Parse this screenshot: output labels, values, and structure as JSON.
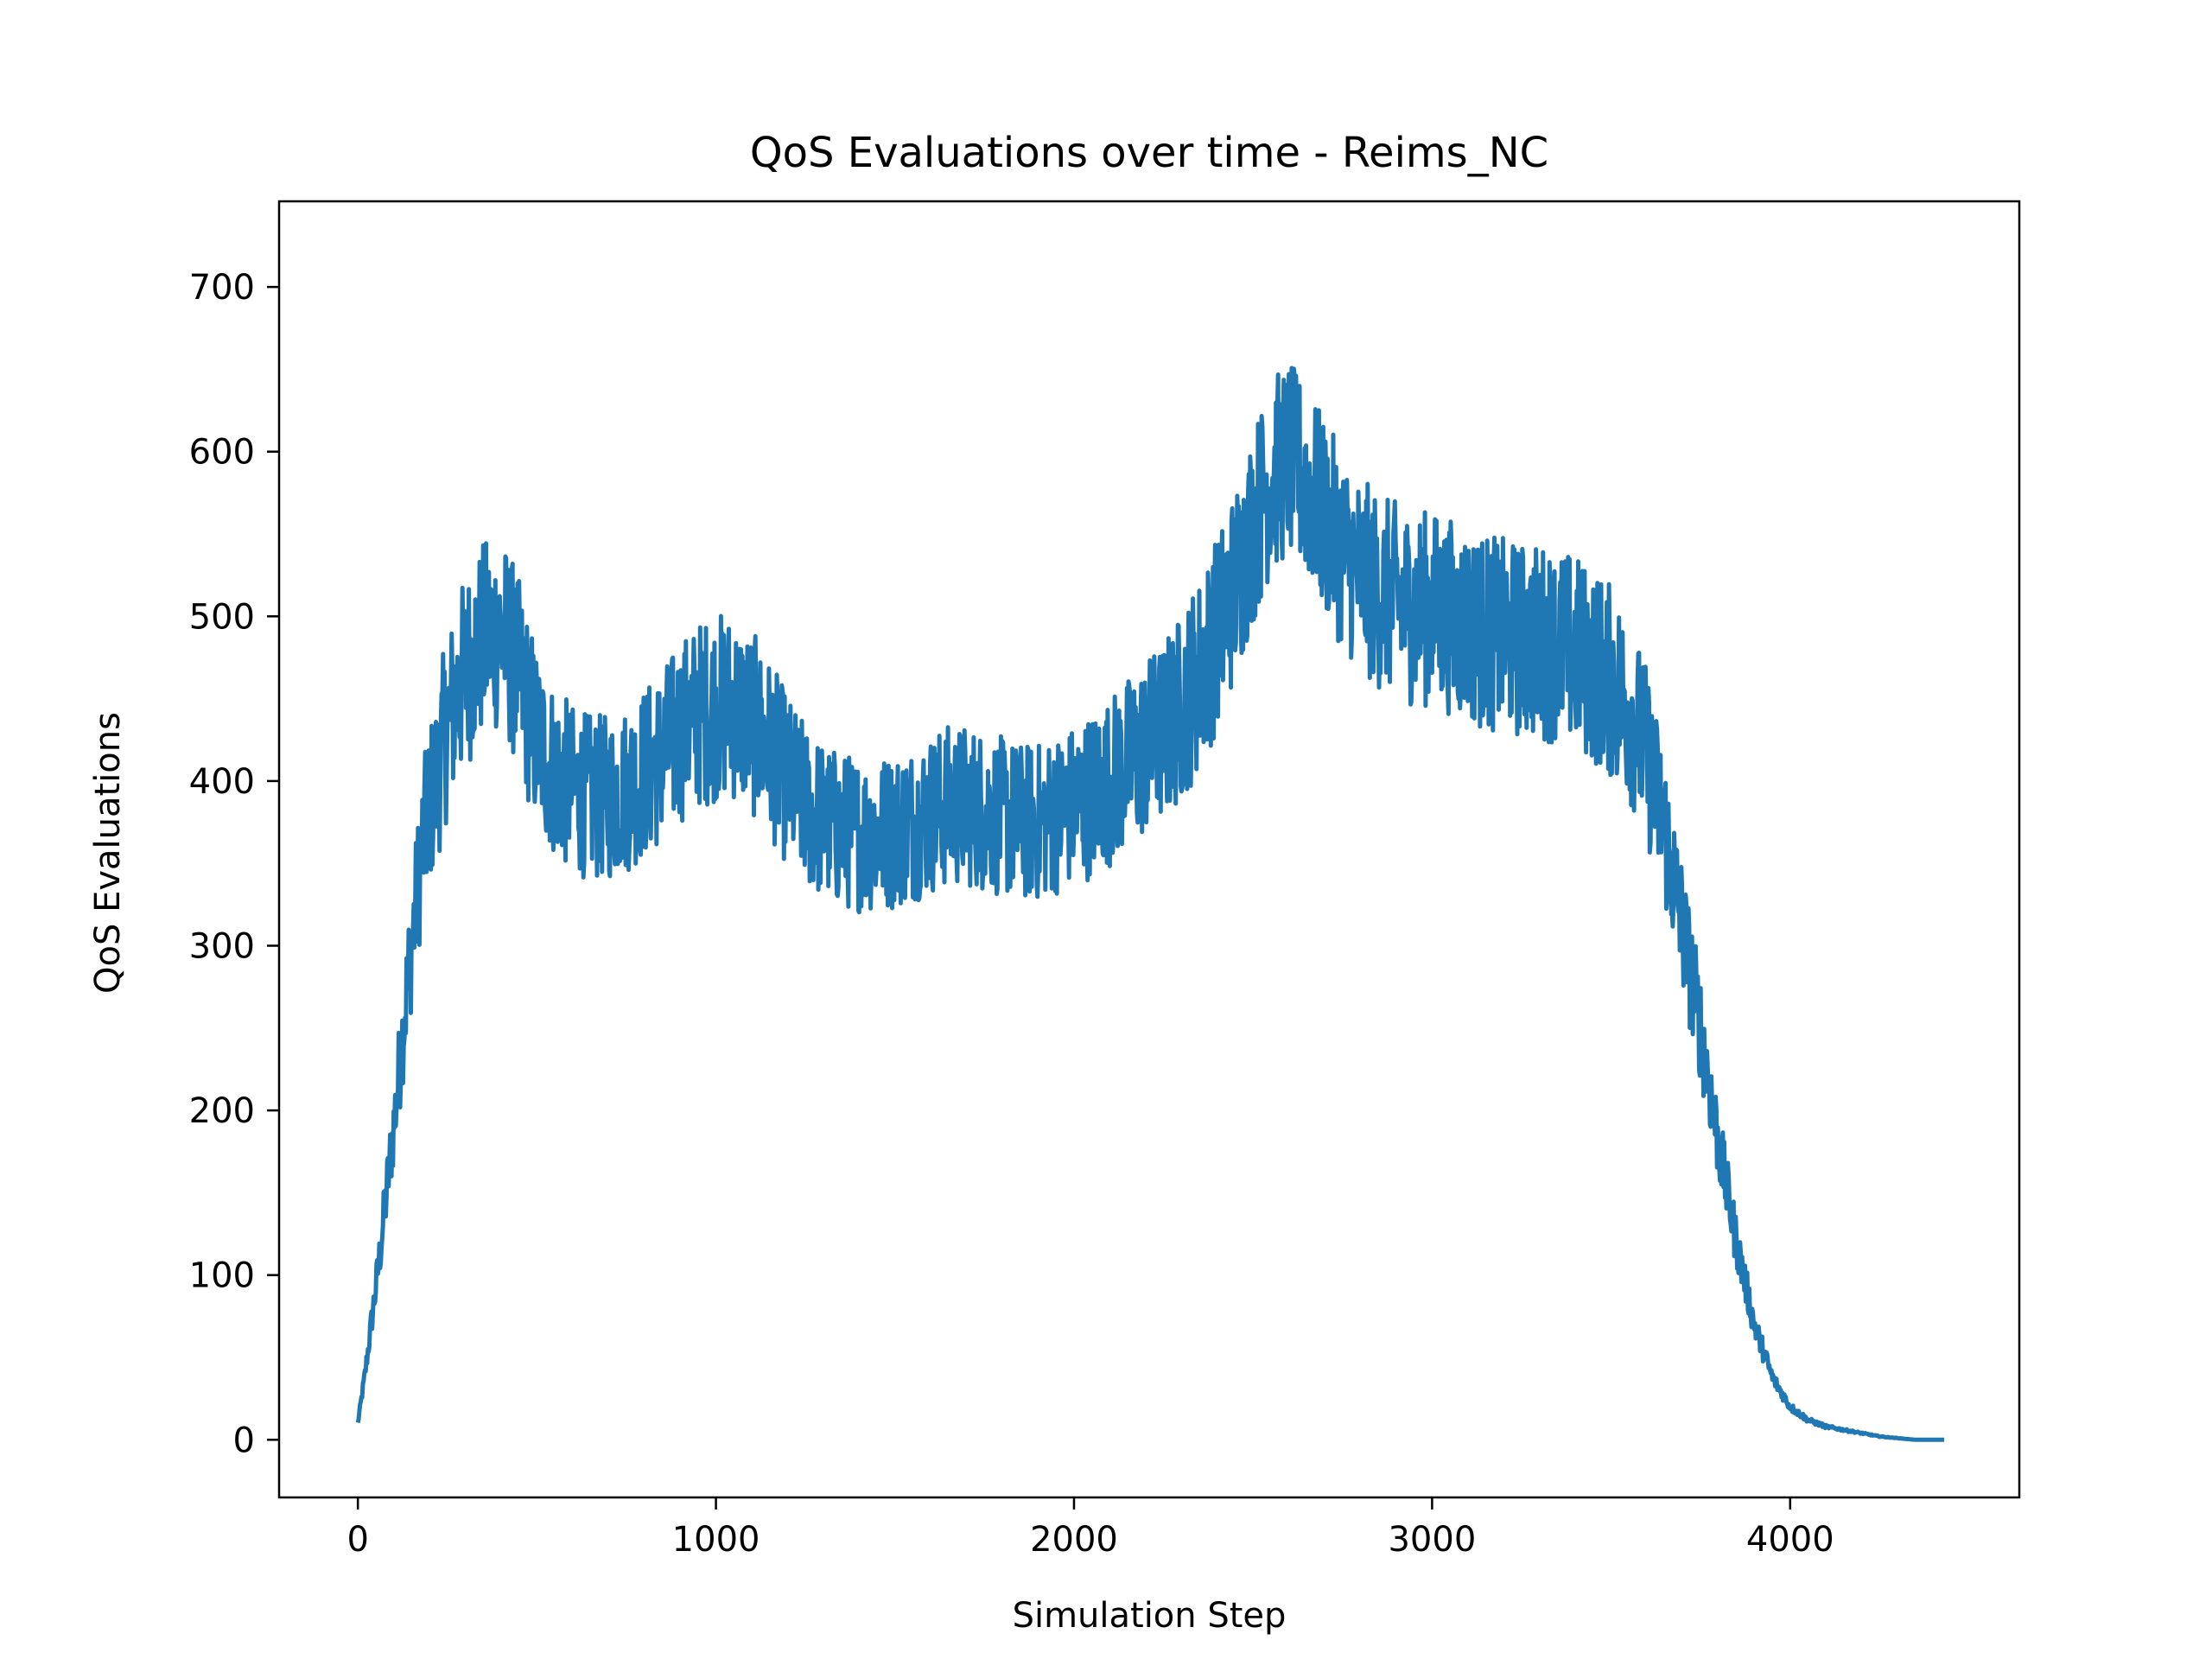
{
  "chart_data": {
    "type": "line",
    "title": "QoS Evaluations over time - Reims_NC",
    "xlabel": "Simulation Step",
    "ylabel": "QoS Evaluations",
    "xlim": [
      -220,
      4640
    ],
    "ylim": [
      -35,
      752
    ],
    "xticks": [
      0,
      1000,
      2000,
      3000,
      4000
    ],
    "xtick_labels": [
      "0",
      "1000",
      "2000",
      "3000",
      "4000"
    ],
    "yticks": [
      0,
      100,
      200,
      300,
      400,
      500,
      600,
      700
    ],
    "ytick_labels": [
      "0",
      "100",
      "200",
      "300",
      "400",
      "500",
      "600",
      "700"
    ],
    "grid": false,
    "series": [
      {
        "color": "#1f77b4",
        "x": [
          0,
          20,
          40,
          60,
          80,
          100,
          120,
          140,
          160,
          180,
          200,
          220,
          240,
          260,
          280,
          300,
          320,
          340,
          360,
          380,
          400,
          420,
          440,
          460,
          480,
          500,
          550,
          600,
          650,
          700,
          750,
          800,
          850,
          900,
          950,
          1000,
          1050,
          1100,
          1150,
          1200,
          1250,
          1300,
          1350,
          1400,
          1450,
          1500,
          1550,
          1600,
          1650,
          1700,
          1750,
          1800,
          1850,
          1900,
          1950,
          2000,
          2050,
          2100,
          2150,
          2200,
          2250,
          2300,
          2350,
          2400,
          2450,
          2500,
          2550,
          2600,
          2650,
          2700,
          2750,
          2800,
          2850,
          2900,
          2950,
          3000,
          3050,
          3100,
          3150,
          3200,
          3250,
          3300,
          3350,
          3400,
          3450,
          3500,
          3550,
          3600,
          3650,
          3700,
          3750,
          3800,
          3850,
          3900,
          3950,
          4000,
          4050,
          4100,
          4150,
          4200,
          4250,
          4300,
          4350,
          4400,
          4430
        ],
        "y": [
          10,
          40,
          75,
          110,
          150,
          190,
          235,
          280,
          320,
          360,
          385,
          400,
          425,
          440,
          455,
          465,
          475,
          482,
          488,
          490,
          488,
          482,
          470,
          455,
          440,
          425,
          405,
          395,
          390,
          390,
          395,
          405,
          415,
          430,
          440,
          445,
          445,
          435,
          420,
          400,
          385,
          375,
          370,
          368,
          368,
          370,
          375,
          380,
          385,
          385,
          382,
          378,
          375,
          375,
          380,
          385,
          392,
          400,
          410,
          420,
          430,
          445,
          465,
          490,
          520,
          555,
          585,
          595,
          580,
          560,
          540,
          525,
          515,
          510,
          505,
          505,
          500,
          495,
          490,
          488,
          485,
          485,
          482,
          478,
          470,
          460,
          445,
          415,
          370,
          310,
          250,
          180,
          120,
          70,
          38,
          20,
          12,
          8,
          6,
          4,
          2,
          1,
          0,
          0,
          0
        ]
      }
    ]
  }
}
